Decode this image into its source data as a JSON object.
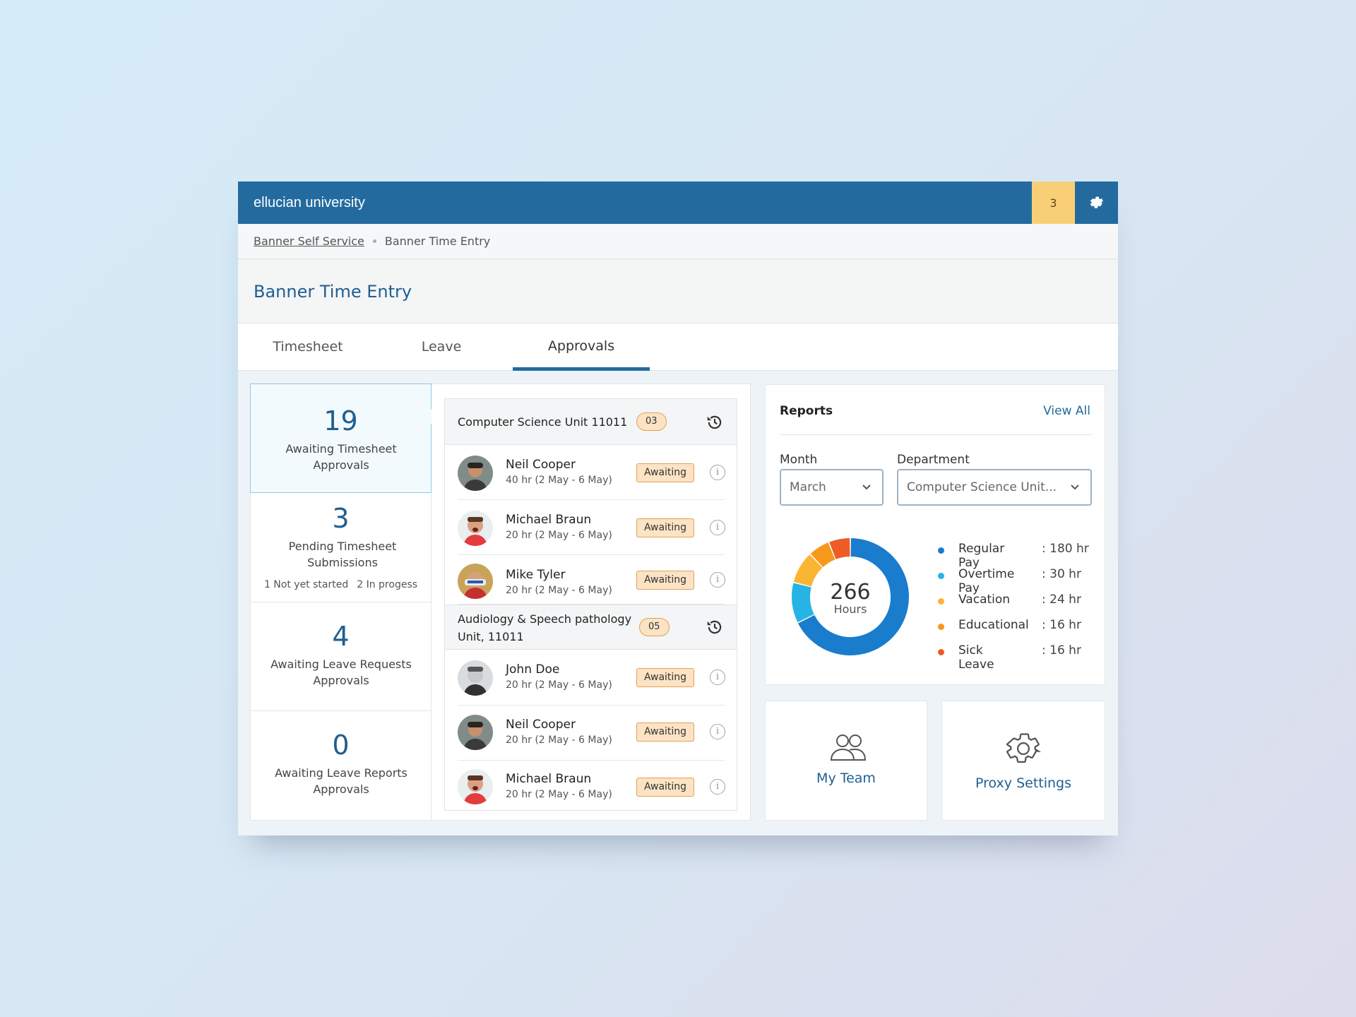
{
  "app": {
    "brand": "ellucian university",
    "notification_count": "3"
  },
  "breadcrumb": {
    "root": "Banner Self Service",
    "current": "Banner Time Entry"
  },
  "page_title": "Banner Time Entry",
  "tabs": [
    {
      "label": "Timesheet",
      "active": false
    },
    {
      "label": "Leave",
      "active": false
    },
    {
      "label": "Approvals",
      "active": true
    }
  ],
  "stats": [
    {
      "number": "19",
      "label": "Awaiting Timesheet Approvals"
    },
    {
      "number": "3",
      "label": "Pending Timesheet Submissions",
      "sub_a": "1 Not yet started",
      "sub_b": "2 In progess"
    },
    {
      "number": "4",
      "label": "Awaiting Leave Requests Approvals"
    },
    {
      "number": "0",
      "label": "Awaiting Leave Reports Approvals"
    }
  ],
  "groups": [
    {
      "title": "Computer Science Unit 11011",
      "count": "03",
      "rows": [
        {
          "name": "Neil Cooper",
          "hours": "40 hr (2 May - 6 May)",
          "status": "Awaiting"
        },
        {
          "name": "Michael Braun",
          "hours": "20 hr (2 May - 6 May)",
          "status": "Awaiting"
        },
        {
          "name": "Mike Tyler",
          "hours": "20 hr (2 May - 6 May)",
          "status": "Awaiting"
        }
      ]
    },
    {
      "title_line1": "Audiology & Speech pathology",
      "title_line2": "Unit, 11011",
      "count": "05",
      "rows": [
        {
          "name": "John Doe",
          "hours": "20 hr (2 May - 6 May)",
          "status": "Awaiting"
        },
        {
          "name": "Neil Cooper",
          "hours": "20 hr (2 May - 6 May)",
          "status": "Awaiting"
        },
        {
          "name": "Michael Braun",
          "hours": "20 hr (2 May - 6 May)",
          "status": "Awaiting"
        }
      ]
    }
  ],
  "reports": {
    "title": "Reports",
    "view_all": "View All",
    "month_label": "Month",
    "month_value": "March",
    "department_label": "Department",
    "department_value": "Computer Science Unit...",
    "total_value": "266",
    "total_unit": "Hours"
  },
  "chart_data": {
    "type": "pie",
    "categories": [
      "Regular Pay",
      "Overtime Pay",
      "Vacation",
      "Educational",
      "Sick Leave"
    ],
    "values": [
      180,
      30,
      24,
      16,
      16
    ],
    "value_labels": [
      ": 180 hr",
      ": 30 hr",
      ": 24 hr",
      ": 16 hr",
      ": 16 hr"
    ],
    "colors": [
      "#1a7ccd",
      "#27b3e4",
      "#fbb535",
      "#f7981d",
      "#ef5b27"
    ]
  },
  "tiles": [
    {
      "label": "My Team",
      "icon": "team-icon"
    },
    {
      "label": "Proxy Settings",
      "icon": "gear-icon"
    }
  ],
  "colors": {
    "brand": "#236b9f",
    "notification": "#f8cf77",
    "badge": "#fbe3c4"
  }
}
